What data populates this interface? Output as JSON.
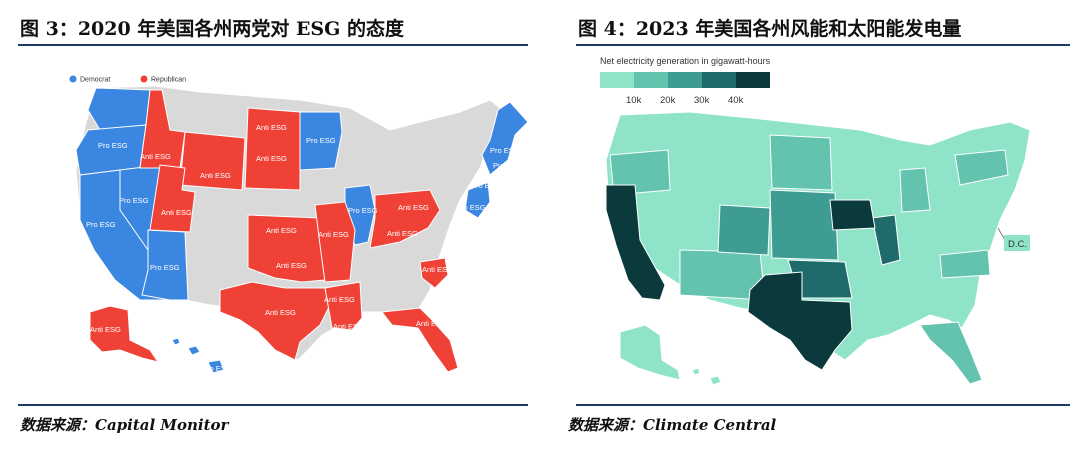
{
  "left_panel": {
    "title": "图 3：2020 年美国各州两党对 ESG 的态度",
    "source": "数据来源：Capital Monitor",
    "legend": [
      {
        "label": "Democrat",
        "color": "#3a86e0"
      },
      {
        "label": "Republican",
        "color": "#ef4136"
      }
    ],
    "neutral_color": "#d9d9d9",
    "pro_label": "Pro ESG",
    "anti_label": "Anti ESG"
  },
  "right_panel": {
    "title": "图 4：2023 年美国各州风能和太阳能发电量",
    "source": "数据来源：Climate Central",
    "scale_caption": "Net electricity generation in gigawatt-hours",
    "scale_ticks": [
      "10k",
      "20k",
      "30k",
      "40k"
    ],
    "scale_colors": [
      "#8fe3c8",
      "#63c3ae",
      "#3f9c93",
      "#1f6b6c",
      "#0b3a3d"
    ],
    "dc_label": "D.C."
  }
}
